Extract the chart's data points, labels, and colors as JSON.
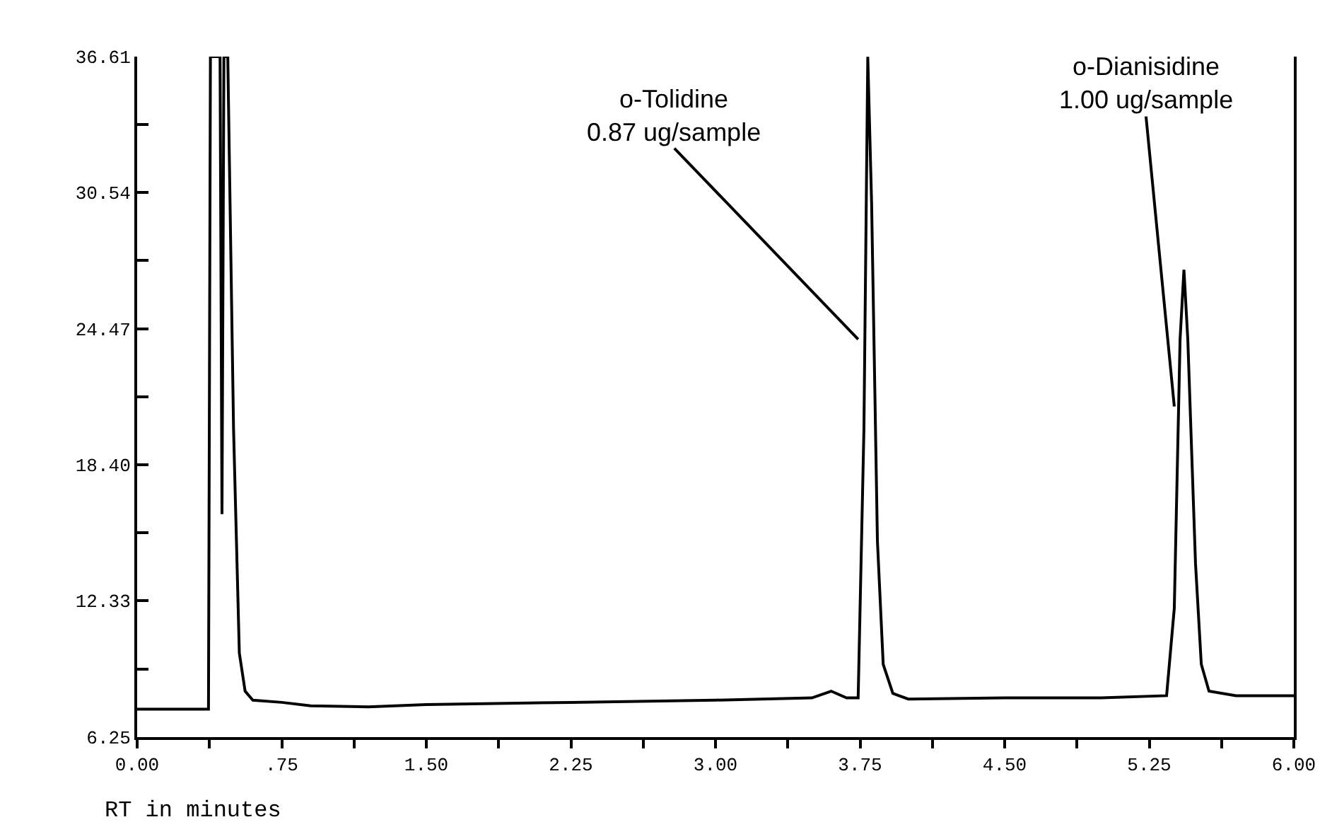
{
  "chart_data": {
    "type": "line",
    "xlabel": "RT in minutes",
    "x": [
      0.0,
      0.37,
      0.38,
      0.43,
      0.44,
      0.45,
      0.47,
      0.5,
      0.53,
      0.56,
      0.6,
      0.75,
      0.9,
      1.2,
      1.5,
      2.25,
      3.0,
      3.5,
      3.6,
      3.68,
      3.74,
      3.77,
      3.79,
      3.81,
      3.84,
      3.87,
      3.92,
      4.0,
      4.5,
      5.0,
      5.34,
      5.38,
      5.41,
      5.43,
      5.45,
      5.49,
      5.52,
      5.56,
      5.7,
      6.0
    ],
    "series": [
      {
        "color": "#000000",
        "values": [
          7.5,
          7.5,
          36.61,
          36.61,
          16.2,
          36.61,
          36.61,
          20,
          10,
          8.3,
          7.9,
          7.8,
          7.65,
          7.6,
          7.7,
          7.8,
          7.9,
          8.0,
          8.3,
          8.0,
          8.0,
          20,
          36.6,
          30,
          15,
          9.5,
          8.2,
          7.95,
          8.0,
          8.0,
          8.1,
          12,
          24,
          27.1,
          24,
          14,
          9.5,
          8.3,
          8.1,
          8.1
        ]
      }
    ],
    "xlim": [
      0,
      6
    ],
    "ylim": [
      6.25,
      36.61
    ],
    "xticks": [
      {
        "value": 0,
        "label": "0.00"
      },
      {
        "value": 0.375,
        "label": null
      },
      {
        "value": 0.75,
        "label": ".75"
      },
      {
        "value": 1.125,
        "label": null
      },
      {
        "value": 1.5,
        "label": "1.50"
      },
      {
        "value": 1.875,
        "label": null
      },
      2.25,
      {
        "value": 2.625,
        "label": null
      },
      {
        "value": 3,
        "label": "3.00"
      },
      {
        "value": 3.375,
        "label": null
      },
      3.75,
      {
        "value": 4.125,
        "label": null
      },
      {
        "value": 4.5,
        "label": "4.50"
      },
      {
        "value": 4.875,
        "label": null
      },
      5.25,
      {
        "value": 5.625,
        "label": null
      },
      {
        "value": 6,
        "label": "6.00"
      }
    ],
    "yticks": [
      6.25,
      {
        "value": 9.29,
        "label": null
      },
      12.33,
      {
        "value": 15.37,
        "label": null
      },
      {
        "value": 18.4,
        "label": "18.40"
      },
      {
        "value": 21.44,
        "label": null
      },
      24.47,
      {
        "value": 27.51,
        "label": null
      },
      30.54,
      {
        "value": 33.58,
        "label": null
      },
      36.61
    ],
    "annotations": [
      {
        "text": "o-Tolidine\n0.87 ug/sample",
        "x": 3.74,
        "y": 24
      },
      {
        "text": "o-Dianisidine\n1.00 ug/sample",
        "x": 5.38,
        "y": 21
      }
    ],
    "marker": "none",
    "line_style": "solid"
  }
}
